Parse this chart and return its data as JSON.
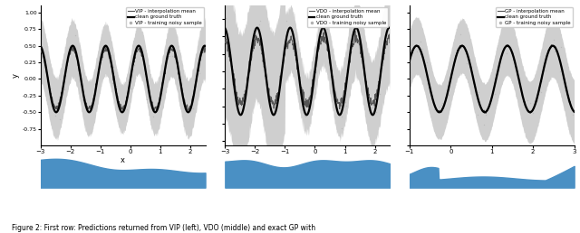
{
  "panels": [
    {
      "legend_mean": "VIP - interpolation mean",
      "legend_truth": "clean ground truth",
      "legend_scatter": "VIP - training noisy sample",
      "xlim": [
        -3,
        2.5
      ],
      "ylim": [
        -1.0,
        1.1
      ],
      "xlabel": "x",
      "ylabel": "y",
      "xticks": [
        -3,
        -2,
        -1,
        0,
        1,
        2
      ],
      "yticks": [
        -0.75,
        -0.5,
        -0.25,
        0.0,
        0.25,
        0.5,
        0.75,
        1.0
      ]
    },
    {
      "legend_mean": "VDO - interpolation mean",
      "legend_truth": "clean ground truth",
      "legend_scatter": "VDO - training noisy sample",
      "xlim": [
        -3,
        2.5
      ],
      "ylim": [
        -0.85,
        0.75
      ],
      "xlabel": "",
      "ylabel": "",
      "xticks": [
        -3,
        -2,
        -1,
        0,
        1,
        2
      ],
      "yticks": []
    },
    {
      "legend_mean": "GP - interpolation mean",
      "legend_truth": "clean ground truth",
      "legend_scatter": "GP - training noisy sample",
      "xlim": [
        -1,
        3
      ],
      "ylim": [
        -1.0,
        1.1
      ],
      "xlabel": "",
      "ylabel": "",
      "xticks": [
        -1,
        0,
        1,
        2,
        3
      ],
      "yticks": []
    }
  ],
  "shade_color": "#c0c0c0",
  "mean_color": "#555555",
  "truth_color": "#000000",
  "scatter_color": "#b0b0b0",
  "bar_color": "#4a90c4",
  "background_color": "#ffffff",
  "fig_text": "Figure 2: First row: Predictions returned from VIP (left), VDO (middle) and exact GP with"
}
